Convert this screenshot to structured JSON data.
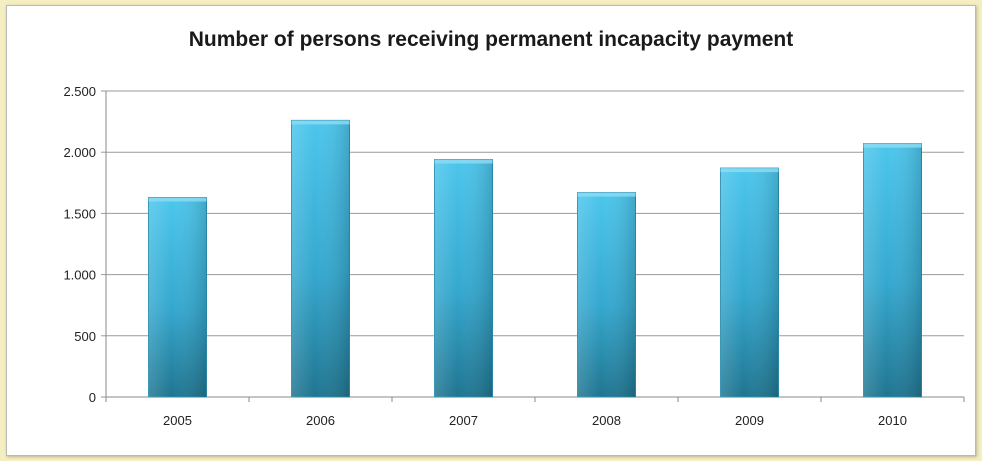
{
  "chart_data": {
    "type": "bar",
    "title": "Number of persons receiving permanent incapacity payment",
    "xlabel": "",
    "ylabel": "",
    "categories": [
      "2005",
      "2006",
      "2007",
      "2008",
      "2009",
      "2010"
    ],
    "values": [
      1630,
      2260,
      1940,
      1670,
      1870,
      2070
    ],
    "ylim": [
      0,
      2500
    ],
    "yticks": [
      0,
      500,
      1000,
      1500,
      2000,
      2500
    ],
    "ytick_labels": [
      "0",
      "500",
      "1.000",
      "1.500",
      "2.000",
      "2.500"
    ],
    "grid": true,
    "legend": "none",
    "colors": {
      "bar_top": "#47c1e8",
      "bar_bottom": "#1f7590",
      "grid": "#9a9a9a",
      "background": "#f4efc2"
    }
  }
}
